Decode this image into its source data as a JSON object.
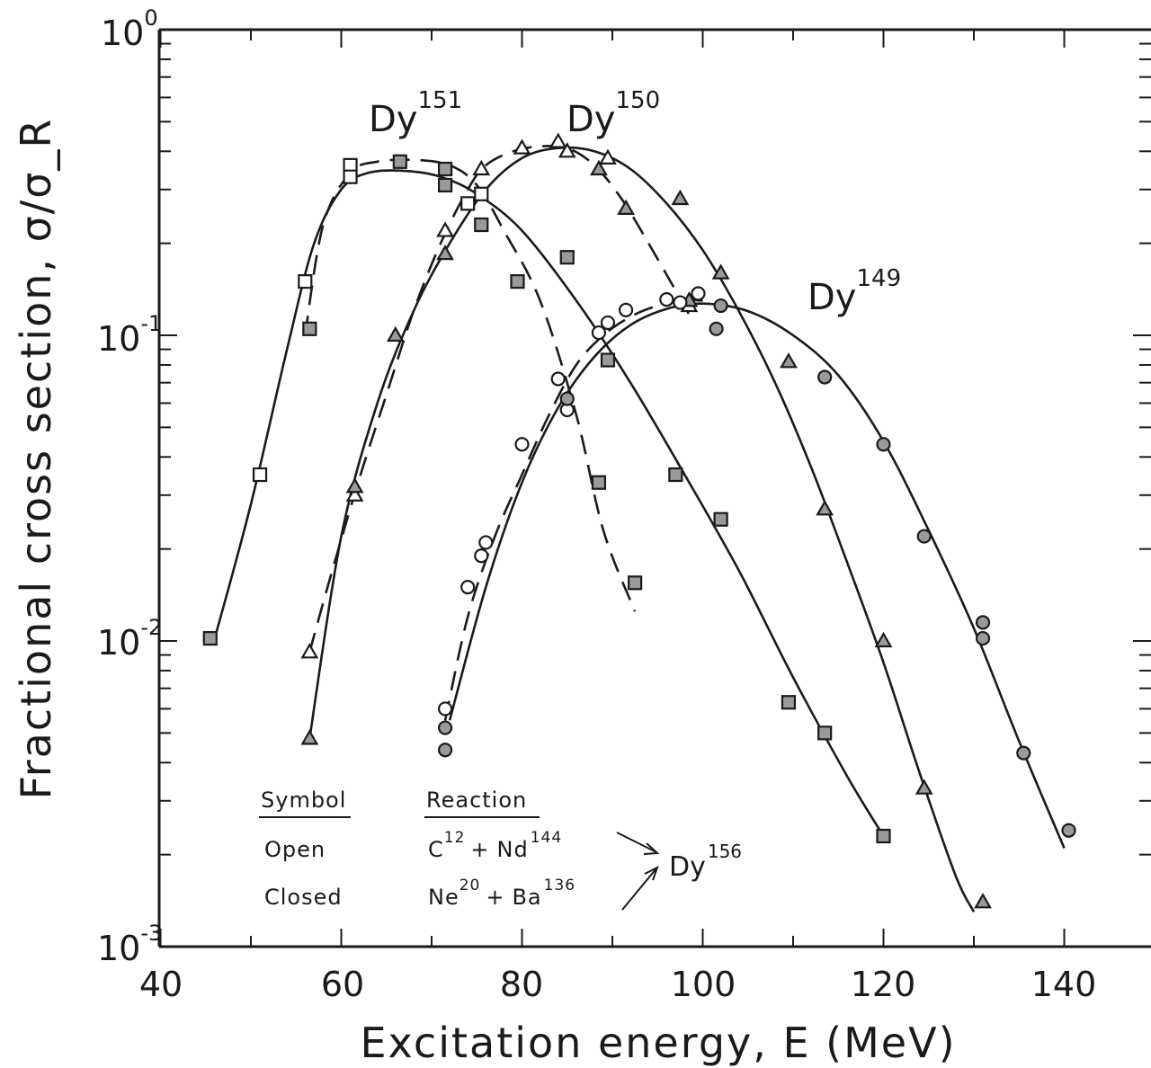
{
  "chart_data": {
    "type": "scatter",
    "xlabel": "Excitation energy, E (MeV)",
    "ylabel": "Fractional cross section, σ/σ_R",
    "xlim": [
      40,
      150
    ],
    "ylim": [
      0.001,
      1
    ],
    "y_scale": "log",
    "grid": false,
    "x_ticks": [
      {
        "value": 40,
        "label": "40"
      },
      {
        "value": 60,
        "label": "60"
      },
      {
        "value": 80,
        "label": "80"
      },
      {
        "value": 100,
        "label": "100"
      },
      {
        "value": 120,
        "label": "120"
      },
      {
        "value": 140,
        "label": "140"
      }
    ],
    "y_ticks": [
      {
        "value": 1,
        "base": "10",
        "exp": "0"
      },
      {
        "value": 0.1,
        "base": "10",
        "exp": "-1"
      },
      {
        "value": 0.01,
        "base": "10",
        "exp": "-2"
      },
      {
        "value": 0.001,
        "base": "10",
        "exp": "-3"
      }
    ],
    "series": [
      {
        "name": "Dy151",
        "marker": "square",
        "fill": "open",
        "line": "dashed",
        "x": [
          51,
          56,
          61,
          61,
          74,
          75.5
        ],
        "y": [
          0.035,
          0.15,
          0.36,
          0.33,
          0.27,
          0.29
        ],
        "curve_x": [
          56,
          58,
          61,
          64,
          68,
          72,
          75,
          78,
          82,
          86,
          89,
          92.5
        ],
        "curve_y": [
          0.1,
          0.23,
          0.34,
          0.37,
          0.375,
          0.36,
          0.31,
          0.22,
          0.13,
          0.055,
          0.023,
          0.0125
        ]
      },
      {
        "name": "Dy151",
        "marker": "square",
        "fill": "closed",
        "line": "solid",
        "x": [
          45.5,
          56.5,
          66.5,
          71.5,
          71.5,
          75.5,
          79.5,
          85,
          88.5,
          89.5,
          92.5,
          97,
          102,
          109.5,
          113.5,
          120
        ],
        "y": [
          0.0102,
          0.105,
          0.37,
          0.35,
          0.31,
          0.23,
          0.15,
          0.18,
          0.033,
          0.083,
          0.0155,
          0.035,
          0.025,
          0.0063,
          0.005,
          0.0023
        ],
        "curve_x": [
          46,
          50,
          54,
          57,
          60,
          63,
          67,
          71,
          75,
          80,
          86,
          92,
          98,
          104,
          110,
          116,
          120
        ],
        "curve_y": [
          0.0102,
          0.028,
          0.09,
          0.2,
          0.3,
          0.34,
          0.345,
          0.33,
          0.29,
          0.22,
          0.13,
          0.07,
          0.035,
          0.017,
          0.0076,
          0.0036,
          0.0023
        ]
      },
      {
        "name": "Dy150",
        "marker": "triangle",
        "fill": "open",
        "line": "dashed",
        "x": [
          56.5,
          61.5,
          71.5,
          75.5,
          80,
          84,
          85,
          89.5,
          98.5
        ],
        "y": [
          0.0092,
          0.03,
          0.22,
          0.35,
          0.41,
          0.43,
          0.4,
          0.38,
          0.125
        ],
        "curve_x": [
          56.5,
          59,
          62,
          65,
          68,
          71,
          74,
          76,
          79,
          82,
          85,
          88,
          91,
          94,
          97,
          99
        ],
        "curve_y": [
          0.0092,
          0.017,
          0.034,
          0.064,
          0.12,
          0.2,
          0.3,
          0.36,
          0.4,
          0.415,
          0.41,
          0.36,
          0.28,
          0.2,
          0.14,
          0.11
        ]
      },
      {
        "name": "Dy150",
        "marker": "triangle",
        "fill": "closed",
        "line": "solid",
        "x": [
          56.5,
          61.5,
          66,
          71.5,
          88.5,
          91.5,
          97.5,
          98.5,
          102,
          109.5,
          113.5,
          120,
          124.5,
          131
        ],
        "y": [
          0.0048,
          0.032,
          0.1,
          0.185,
          0.35,
          0.26,
          0.28,
          0.13,
          0.16,
          0.082,
          0.027,
          0.01,
          0.0033,
          0.0014
        ],
        "curve_x": [
          56.5,
          60,
          64,
          68,
          72,
          76,
          80,
          84,
          88,
          92,
          96,
          100,
          104,
          108,
          112,
          116,
          120,
          124,
          128,
          130
        ],
        "curve_y": [
          0.0048,
          0.022,
          0.06,
          0.12,
          0.2,
          0.3,
          0.38,
          0.41,
          0.4,
          0.35,
          0.27,
          0.19,
          0.12,
          0.07,
          0.037,
          0.018,
          0.0085,
          0.0037,
          0.0017,
          0.0013
        ]
      },
      {
        "name": "Dy149",
        "marker": "circle",
        "fill": "open",
        "line": "dashed",
        "x": [
          71.5,
          74,
          75.5,
          76,
          80,
          84,
          85,
          88.5,
          89.5,
          91.5,
          96,
          97.5,
          99.5
        ],
        "y": [
          0.006,
          0.015,
          0.019,
          0.021,
          0.044,
          0.072,
          0.057,
          0.102,
          0.11,
          0.121,
          0.131,
          0.128,
          0.137
        ],
        "curve_x": [
          71.5,
          74,
          77,
          80,
          83,
          86,
          89,
          92,
          95,
          98,
          100
        ],
        "curve_y": [
          0.0055,
          0.012,
          0.022,
          0.035,
          0.055,
          0.08,
          0.1,
          0.115,
          0.125,
          0.13,
          0.13
        ]
      },
      {
        "name": "Dy149",
        "marker": "circle",
        "fill": "closed",
        "line": "solid",
        "x": [
          71.5,
          71.5,
          85,
          101.5,
          102,
          113.5,
          120,
          124.5,
          131,
          131,
          135.5,
          140.5
        ],
        "y": [
          0.0052,
          0.0044,
          0.062,
          0.105,
          0.125,
          0.073,
          0.044,
          0.022,
          0.0115,
          0.0102,
          0.0043,
          0.0024
        ],
        "curve_x": [
          72,
          76,
          80,
          84,
          88,
          92,
          96,
          100,
          105,
          110,
          115,
          120,
          125,
          130,
          135,
          140
        ],
        "curve_y": [
          0.0055,
          0.015,
          0.033,
          0.058,
          0.085,
          0.108,
          0.122,
          0.127,
          0.12,
          0.1,
          0.074,
          0.045,
          0.023,
          0.011,
          0.0047,
          0.0021
        ]
      }
    ],
    "isotope_labels": [
      {
        "base": "Dy",
        "sup": "151"
      },
      {
        "base": "Dy",
        "sup": "150"
      },
      {
        "base": "Dy",
        "sup": "149"
      }
    ],
    "legend": {
      "col1_header": "Symbol",
      "col2_header": "Reaction",
      "row1": {
        "symbol": "Open",
        "a": "C",
        "a_sup": "12",
        "plus": "+",
        "b": "Nd",
        "b_sup": "144"
      },
      "row2": {
        "symbol": "Closed",
        "a": "Ne",
        "a_sup": "20",
        "plus": "+",
        "b": "Ba",
        "b_sup": "136"
      },
      "product": "Dy",
      "product_sup": "156"
    }
  }
}
